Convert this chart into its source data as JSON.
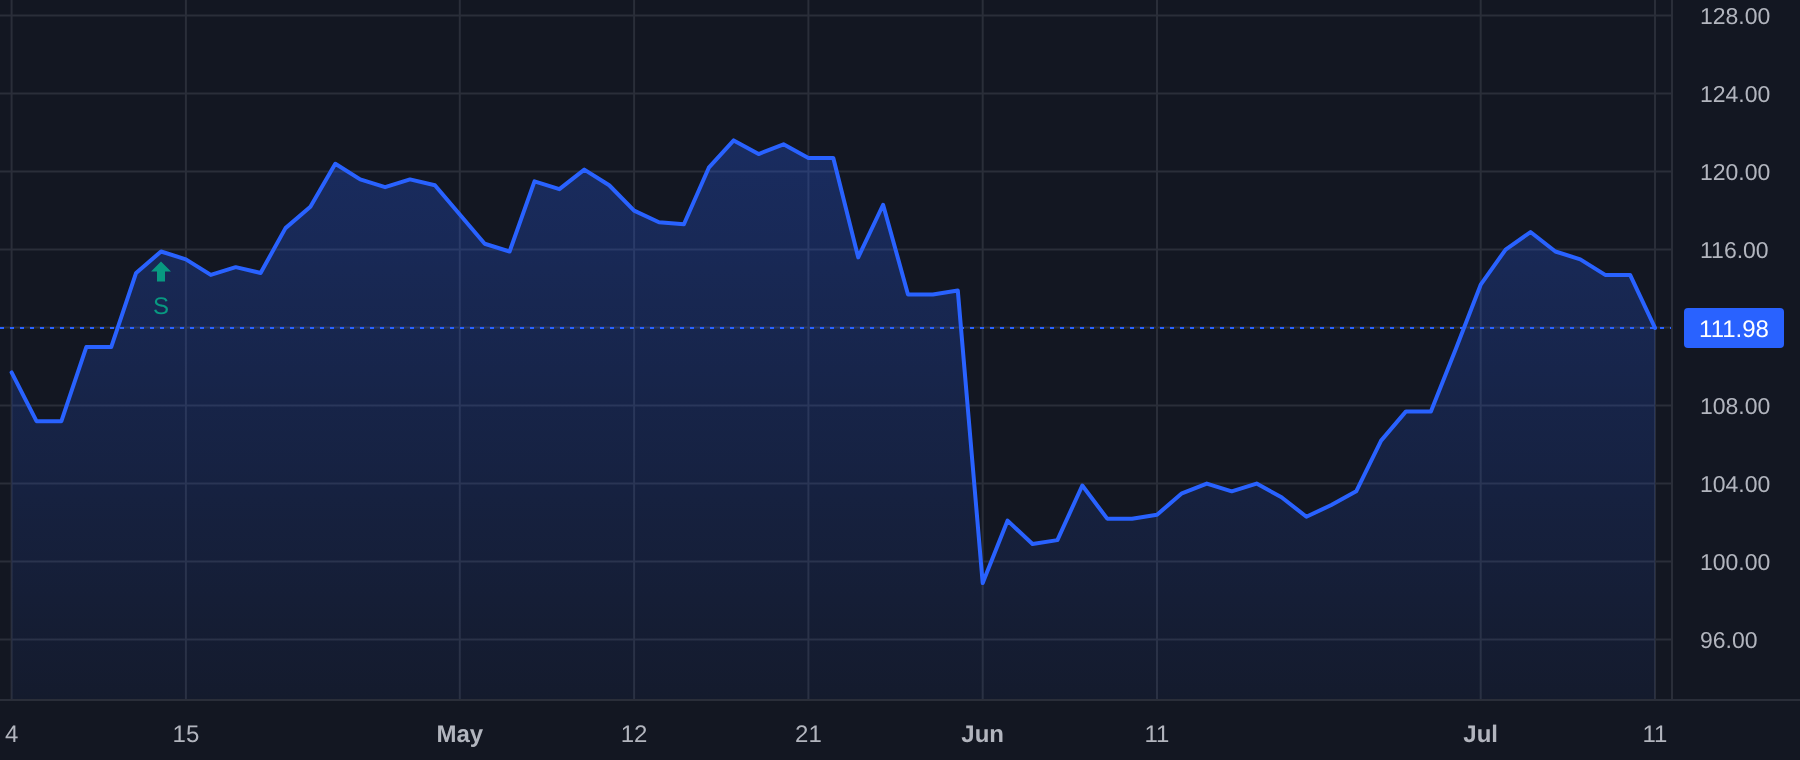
{
  "chart_data": {
    "type": "area",
    "categories": [
      "4",
      null,
      null,
      null,
      null,
      null,
      null,
      "15",
      null,
      null,
      null,
      null,
      null,
      null,
      null,
      null,
      null,
      null,
      "May",
      null,
      null,
      null,
      null,
      null,
      null,
      "12",
      null,
      null,
      null,
      null,
      null,
      null,
      "21",
      null,
      null,
      null,
      null,
      null,
      null,
      "Jun",
      null,
      null,
      null,
      null,
      null,
      null,
      "11",
      null,
      null,
      null,
      null,
      null,
      null,
      null,
      null,
      null,
      null,
      null,
      null,
      "Jul",
      null,
      null,
      null,
      null,
      null,
      null,
      "11"
    ],
    "series": [
      {
        "color": "#2962ff",
        "values": [
          109.7,
          107.2,
          107.2,
          111.0,
          111.0,
          114.8,
          115.9,
          115.5,
          114.7,
          115.1,
          114.8,
          117.1,
          118.2,
          120.4,
          119.6,
          119.2,
          119.6,
          119.3,
          117.8,
          116.3,
          115.9,
          119.5,
          119.1,
          120.1,
          119.3,
          118.0,
          117.4,
          117.3,
          120.2,
          121.6,
          120.9,
          121.4,
          120.7,
          120.7,
          115.6,
          118.3,
          113.7,
          113.7,
          113.9,
          98.9,
          102.1,
          100.9,
          101.1,
          103.9,
          102.2,
          102.2,
          102.4,
          103.5,
          104.0,
          103.6,
          104.0,
          103.3,
          102.3,
          102.9,
          103.6,
          106.2,
          107.7,
          107.7,
          110.9,
          114.2,
          116.0,
          116.9,
          115.9,
          115.5,
          114.7,
          114.7,
          111.98
        ]
      }
    ],
    "ylim": [
      92.9,
      128.8
    ],
    "yticks": [
      {
        "value": 96,
        "label": "96.00"
      },
      {
        "value": 100,
        "label": "100.00"
      },
      {
        "value": 104,
        "label": "104.00"
      },
      {
        "value": 108,
        "label": "108.00"
      },
      {
        "value": 112,
        "label": null
      },
      {
        "value": 116,
        "label": "116.00"
      },
      {
        "value": 120,
        "label": "120.00"
      },
      {
        "value": 124,
        "label": "124.00"
      },
      {
        "value": 128,
        "label": "128.00"
      }
    ],
    "grid": true,
    "ref_lines": [
      {
        "axis": "y",
        "value": 111.98,
        "label": "111.98",
        "color": "#2962ff",
        "line_style": "dotted"
      }
    ],
    "annotations": [
      {
        "text": "S",
        "y": 115.9
      }
    ]
  }
}
